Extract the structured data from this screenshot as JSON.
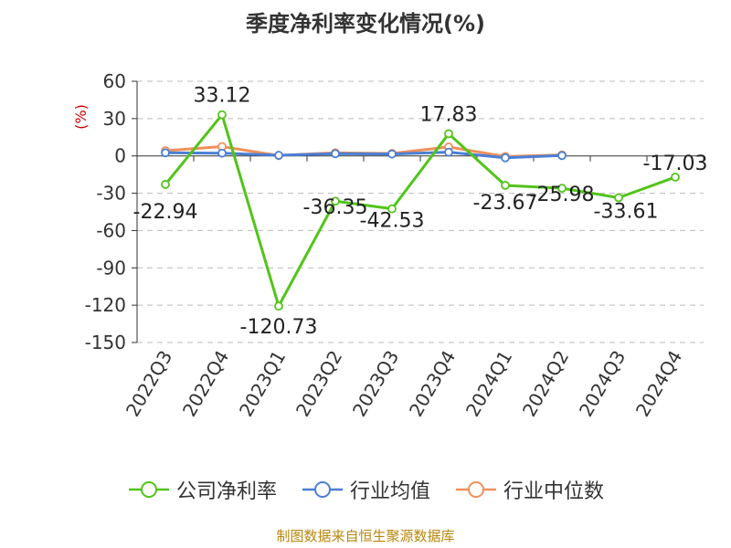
{
  "chart_data": {
    "type": "line",
    "title": "季度净利率变化情况(%)",
    "ylabel": "(%)",
    "xlabel": "",
    "categories": [
      "2022Q3",
      "2022Q4",
      "2023Q1",
      "2023Q2",
      "2023Q3",
      "2023Q4",
      "2024Q1",
      "2024Q2",
      "2024Q3",
      "2024Q4"
    ],
    "ylim": [
      -150,
      60
    ],
    "yticks": [
      60,
      30,
      0,
      -30,
      -60,
      -90,
      -120,
      -150
    ],
    "grid": true,
    "legend_position": "bottom",
    "series": [
      {
        "name": "公司净利率",
        "color": "#52c41a",
        "values": [
          -22.94,
          33.12,
          -120.73,
          -36.35,
          -42.53,
          17.83,
          -23.67,
          -25.98,
          -33.61,
          -17.03
        ],
        "labels": [
          "-22.94",
          "33.12",
          "-120.73",
          "-36.35",
          "-42.53",
          "17.83",
          "-23.67",
          "-25.98",
          "-33.61",
          "-17.03"
        ]
      },
      {
        "name": "行业均值",
        "color": "#4a7fd6",
        "values": [
          2.5,
          2.2,
          0.5,
          1.8,
          1.5,
          3.0,
          -1.5,
          0.3,
          null,
          null
        ]
      },
      {
        "name": "行业中位数",
        "color": "#f0905a",
        "values": [
          4.2,
          7.5,
          0.3,
          2.5,
          2.0,
          7.2,
          -0.5,
          0.8,
          null,
          null
        ]
      }
    ]
  },
  "source": "制图数据来自恒生聚源数据库"
}
